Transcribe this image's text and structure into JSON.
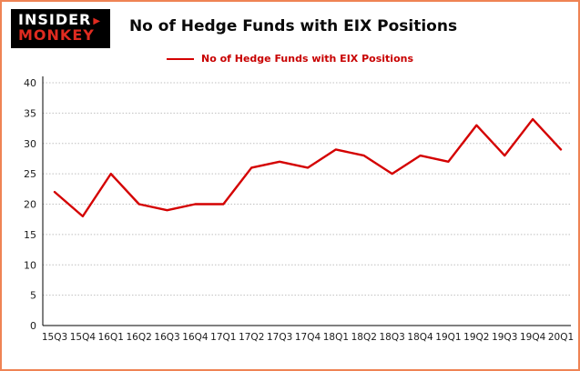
{
  "page": {
    "border_color": "#ef8354",
    "background": "#ffffff"
  },
  "logo": {
    "line1": "INSIDER",
    "arrow": "▶",
    "line2": "MONKEY",
    "bg_color": "#000000",
    "line1_color": "#ffffff",
    "line2_color": "#e02b20"
  },
  "header": {
    "title": "No of Hedge Funds with EIX Positions"
  },
  "legend": {
    "label": "No of Hedge Funds with EIX Positions",
    "color": "#d40000"
  },
  "chart_data": {
    "type": "line",
    "title": "No of Hedge Funds with EIX Positions",
    "categories": [
      "15Q3",
      "15Q4",
      "16Q1",
      "16Q2",
      "16Q3",
      "16Q4",
      "17Q1",
      "17Q2",
      "17Q3",
      "17Q4",
      "18Q1",
      "18Q2",
      "18Q3",
      "18Q4",
      "19Q1",
      "19Q2",
      "19Q3",
      "19Q4",
      "20Q1"
    ],
    "series": [
      {
        "name": "No of Hedge Funds with EIX Positions",
        "color": "#d40000",
        "values": [
          22,
          18,
          25,
          20,
          19,
          20,
          20,
          26,
          27,
          26,
          29,
          28,
          25,
          28,
          27,
          33,
          28,
          34,
          29
        ]
      }
    ],
    "xlabel": "",
    "ylabel": "",
    "ylim": [
      0,
      40
    ],
    "ytick_step": 5,
    "grid": true,
    "grid_color": "#c0c0c0",
    "legend_position": "top"
  }
}
